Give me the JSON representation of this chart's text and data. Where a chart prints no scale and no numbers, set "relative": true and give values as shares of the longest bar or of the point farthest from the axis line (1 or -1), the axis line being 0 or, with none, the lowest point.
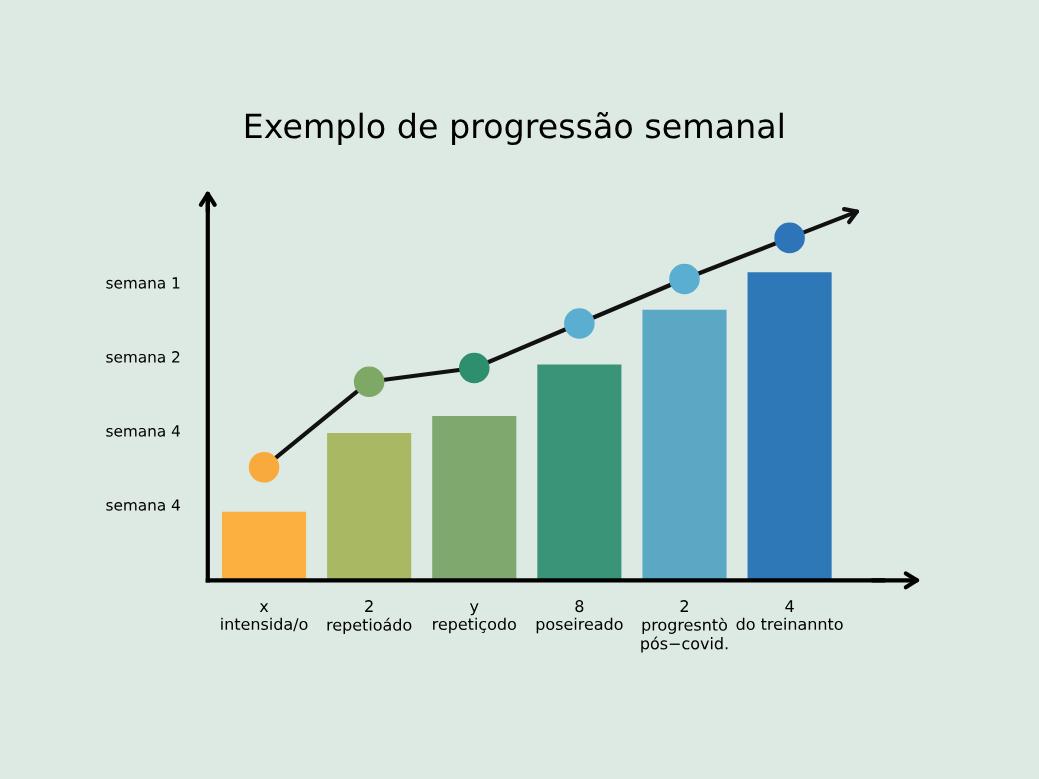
{
  "chart_data": {
    "type": "bar",
    "title": "Exemplo de progressão semanal",
    "relative": true,
    "categories": [
      "x\nintensida/o",
      "2\nrepetioádo",
      "y\nrepetiçodo",
      "8\nposeireado",
      "2\nprogresntò\npós−covid.",
      "4\ndo treinannto"
    ],
    "annotations": [
      "semana 1",
      "semana 2",
      "semana 4",
      "semana 4"
    ],
    "series": [
      {
        "values": [
          0.2,
          0.43,
          0.48,
          0.63,
          0.79,
          0.9
        ],
        "colors": [
          "#fbb040",
          "#a9b862",
          "#7fa86e",
          "#3a9478",
          "#5ba8c4",
          "#2e78b8"
        ]
      },
      {
        "type": "line",
        "color": "#111111",
        "values": [
          0.33,
          0.58,
          0.62,
          0.75,
          0.88,
          1.0
        ],
        "colors": [
          "#f8ab3c",
          "#7ea865",
          "#2d8f6e",
          "#5aaed0",
          "#5aaed0",
          "#2e74b8"
        ]
      }
    ],
    "marker": "circle",
    "line_style": "solid",
    "grid": false,
    "legend": false
  }
}
